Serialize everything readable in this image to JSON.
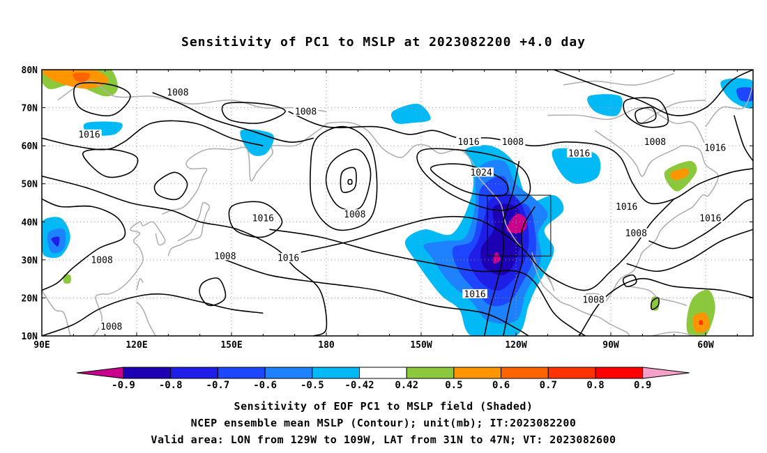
{
  "title": "Sensitivity of PC1 to MSLP at 2023082200 +4.0 day",
  "lat_ticks": [
    "80N",
    "70N",
    "60N",
    "50N",
    "40N",
    "30N",
    "20N",
    "10N"
  ],
  "lon_ticks": [
    "90E",
    "120E",
    "150E",
    "180",
    "150W",
    "120W",
    "90W",
    "60W"
  ],
  "contour_labels": [
    {
      "text": "1008",
      "lon": 133,
      "lat": 74
    },
    {
      "text": "1016",
      "lon": 105,
      "lat": 63
    },
    {
      "text": "1008",
      "lon": 173.5,
      "lat": 69
    },
    {
      "text": "1016",
      "lon": 160,
      "lat": 41
    },
    {
      "text": "1008",
      "lon": 148,
      "lat": 31
    },
    {
      "text": "1016",
      "lon": 168,
      "lat": 30.5
    },
    {
      "text": "1008",
      "lon": 109,
      "lat": 30
    },
    {
      "text": "1008",
      "lon": 112,
      "lat": 12.5
    },
    {
      "text": "1008",
      "lon": 189,
      "lat": 42
    },
    {
      "text": "1016",
      "lon": 225,
      "lat": 61
    },
    {
      "text": "1024",
      "lon": 229,
      "lat": 53
    },
    {
      "text": "1008",
      "lon": 239,
      "lat": 61
    },
    {
      "text": "1016",
      "lon": 260,
      "lat": 58
    },
    {
      "text": "1016",
      "lon": 227,
      "lat": 21
    },
    {
      "text": "1008",
      "lon": 264.5,
      "lat": 19.5
    },
    {
      "text": "1016",
      "lon": 275,
      "lat": 44
    },
    {
      "text": "1008",
      "lon": 284,
      "lat": 61
    },
    {
      "text": "1008",
      "lon": 278,
      "lat": 37
    },
    {
      "text": "1016",
      "lon": 303,
      "lat": 59.5
    },
    {
      "text": "1016",
      "lon": 301.5,
      "lat": 41
    }
  ],
  "colorbar": {
    "labels": [
      "-0.9",
      "-0.8",
      "-0.7",
      "-0.6",
      "-0.5",
      "-0.42",
      "0.42",
      "0.5",
      "0.6",
      "0.7",
      "0.8",
      "0.9"
    ],
    "colors": [
      "#c8008c",
      "#1e00b4",
      "#1e1ee6",
      "#1e46ff",
      "#1e82ff",
      "#00b9f5",
      "#ffffff",
      "#8cc83c",
      "#ff9600",
      "#ff6400",
      "#ff3200",
      "#ff0000",
      "#f5a0c8"
    ]
  },
  "captions": [
    "Sensitivity of EOF PC1 to MSLP field (Shaded)",
    "NCEP ensemble mean MSLP (Contour); unit(mb); IT:2023082200",
    "Valid area: LON from 129W to 109W, LAT from 31N to 47N; VT: 2023082600"
  ]
}
